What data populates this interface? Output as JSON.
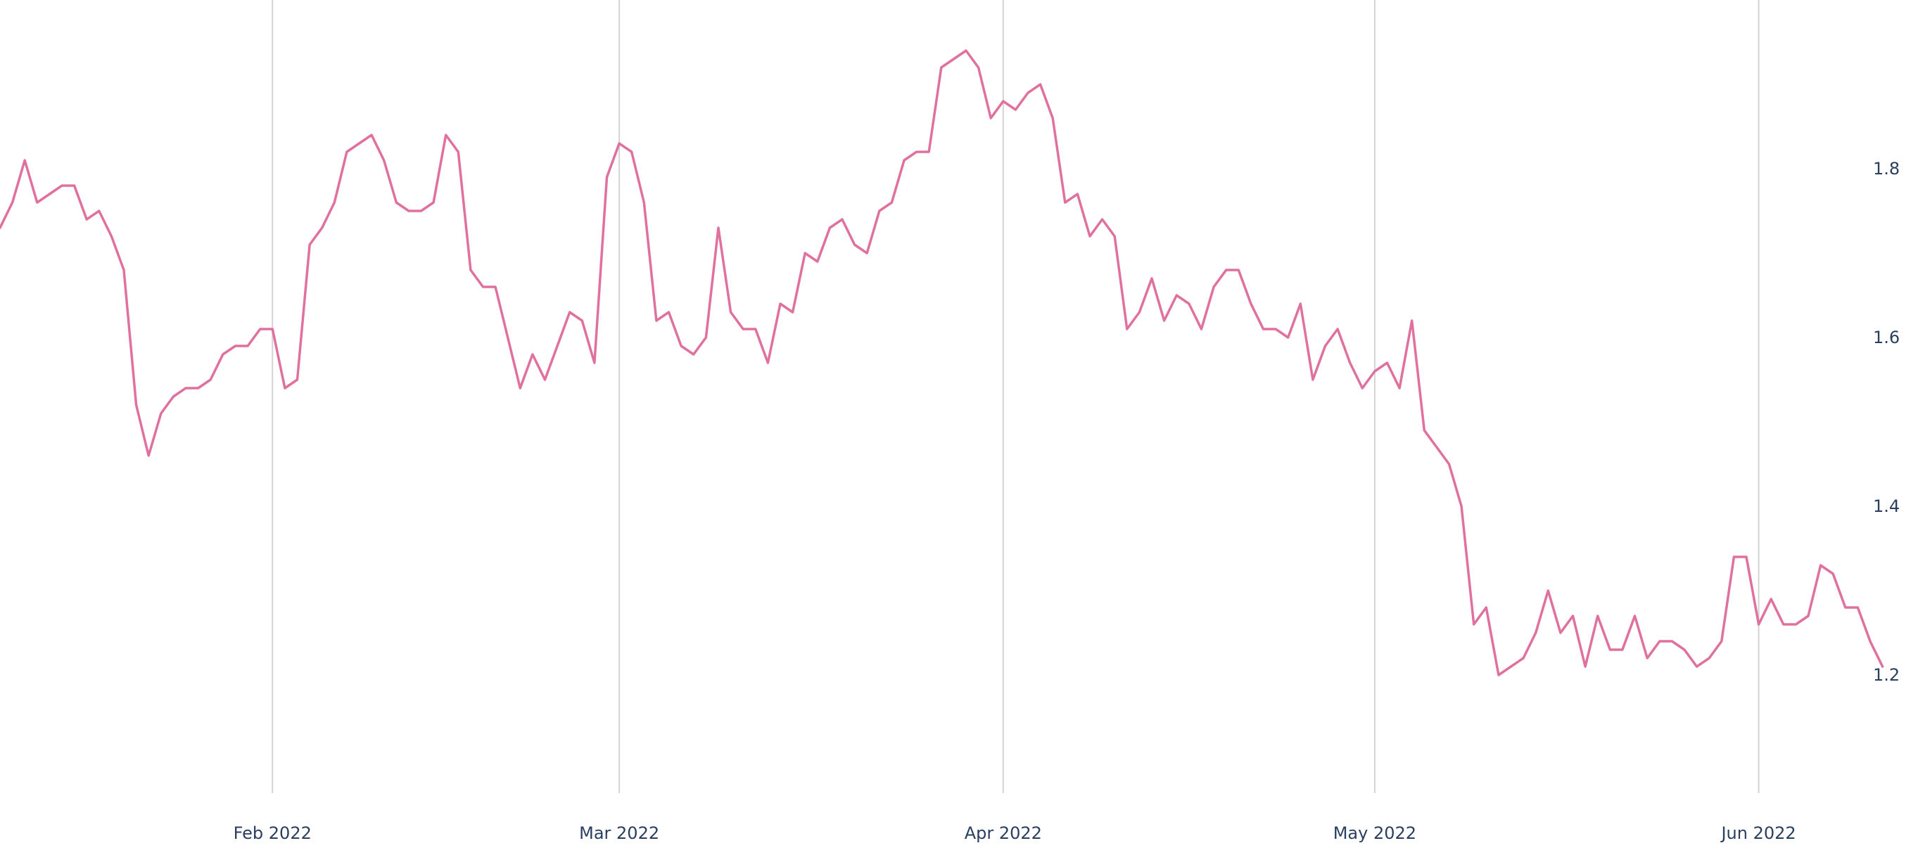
{
  "chart_data": {
    "type": "line",
    "title": "",
    "xlabel": "",
    "ylabel": "",
    "x_start": "2022-01-10",
    "x_end": "2022-06-10",
    "ylim": [
      1.06,
      2.0
    ],
    "grid": {
      "x": true,
      "y": false
    },
    "y_axis_side": "right",
    "x_tick_labels": [
      {
        "date": "2022-02-01",
        "label": "Feb 2022"
      },
      {
        "date": "2022-03-01",
        "label": "Mar 2022"
      },
      {
        "date": "2022-04-01",
        "label": "Apr 2022"
      },
      {
        "date": "2022-05-01",
        "label": "May 2022"
      },
      {
        "date": "2022-06-01",
        "label": "Jun 2022"
      }
    ],
    "y_ticks": [
      1.2,
      1.4,
      1.6,
      1.8
    ],
    "y_tick_labels": [
      "1.2",
      "1.4",
      "1.6",
      "1.8"
    ],
    "series": [
      {
        "color": "#e0719e",
        "points": [
          [
            "2022-01-10",
            1.73
          ],
          [
            "2022-01-11",
            1.76
          ],
          [
            "2022-01-12",
            1.81
          ],
          [
            "2022-01-13",
            1.76
          ],
          [
            "2022-01-14",
            1.77
          ],
          [
            "2022-01-15",
            1.78
          ],
          [
            "2022-01-16",
            1.78
          ],
          [
            "2022-01-17",
            1.74
          ],
          [
            "2022-01-18",
            1.75
          ],
          [
            "2022-01-19",
            1.72
          ],
          [
            "2022-01-20",
            1.68
          ],
          [
            "2022-01-21",
            1.52
          ],
          [
            "2022-01-22",
            1.46
          ],
          [
            "2022-01-23",
            1.51
          ],
          [
            "2022-01-24",
            1.53
          ],
          [
            "2022-01-25",
            1.54
          ],
          [
            "2022-01-26",
            1.54
          ],
          [
            "2022-01-27",
            1.55
          ],
          [
            "2022-01-28",
            1.58
          ],
          [
            "2022-01-29",
            1.59
          ],
          [
            "2022-01-30",
            1.59
          ],
          [
            "2022-01-31",
            1.61
          ],
          [
            "2022-02-01",
            1.61
          ],
          [
            "2022-02-02",
            1.54
          ],
          [
            "2022-02-03",
            1.55
          ],
          [
            "2022-02-04",
            1.71
          ],
          [
            "2022-02-05",
            1.73
          ],
          [
            "2022-02-06",
            1.76
          ],
          [
            "2022-02-07",
            1.82
          ],
          [
            "2022-02-08",
            1.83
          ],
          [
            "2022-02-09",
            1.84
          ],
          [
            "2022-02-10",
            1.81
          ],
          [
            "2022-02-11",
            1.76
          ],
          [
            "2022-02-12",
            1.75
          ],
          [
            "2022-02-13",
            1.75
          ],
          [
            "2022-02-14",
            1.76
          ],
          [
            "2022-02-15",
            1.84
          ],
          [
            "2022-02-16",
            1.82
          ],
          [
            "2022-02-17",
            1.68
          ],
          [
            "2022-02-18",
            1.66
          ],
          [
            "2022-02-19",
            1.66
          ],
          [
            "2022-02-20",
            1.6
          ],
          [
            "2022-02-21",
            1.54
          ],
          [
            "2022-02-22",
            1.58
          ],
          [
            "2022-02-23",
            1.55
          ],
          [
            "2022-02-24",
            1.59
          ],
          [
            "2022-02-25",
            1.63
          ],
          [
            "2022-02-26",
            1.62
          ],
          [
            "2022-02-27",
            1.57
          ],
          [
            "2022-02-28",
            1.79
          ],
          [
            "2022-03-01",
            1.83
          ],
          [
            "2022-03-02",
            1.82
          ],
          [
            "2022-03-03",
            1.76
          ],
          [
            "2022-03-04",
            1.62
          ],
          [
            "2022-03-05",
            1.63
          ],
          [
            "2022-03-06",
            1.59
          ],
          [
            "2022-03-07",
            1.58
          ],
          [
            "2022-03-08",
            1.6
          ],
          [
            "2022-03-09",
            1.73
          ],
          [
            "2022-03-10",
            1.63
          ],
          [
            "2022-03-11",
            1.61
          ],
          [
            "2022-03-12",
            1.61
          ],
          [
            "2022-03-13",
            1.57
          ],
          [
            "2022-03-14",
            1.64
          ],
          [
            "2022-03-15",
            1.63
          ],
          [
            "2022-03-16",
            1.7
          ],
          [
            "2022-03-17",
            1.69
          ],
          [
            "2022-03-18",
            1.73
          ],
          [
            "2022-03-19",
            1.74
          ],
          [
            "2022-03-20",
            1.71
          ],
          [
            "2022-03-21",
            1.7
          ],
          [
            "2022-03-22",
            1.75
          ],
          [
            "2022-03-23",
            1.76
          ],
          [
            "2022-03-24",
            1.81
          ],
          [
            "2022-03-25",
            1.82
          ],
          [
            "2022-03-26",
            1.82
          ],
          [
            "2022-03-27",
            1.92
          ],
          [
            "2022-03-28",
            1.93
          ],
          [
            "2022-03-29",
            1.94
          ],
          [
            "2022-03-30",
            1.92
          ],
          [
            "2022-03-31",
            1.86
          ],
          [
            "2022-04-01",
            1.88
          ],
          [
            "2022-04-02",
            1.87
          ],
          [
            "2022-04-03",
            1.89
          ],
          [
            "2022-04-04",
            1.9
          ],
          [
            "2022-04-05",
            1.86
          ],
          [
            "2022-04-06",
            1.76
          ],
          [
            "2022-04-07",
            1.77
          ],
          [
            "2022-04-08",
            1.72
          ],
          [
            "2022-04-09",
            1.74
          ],
          [
            "2022-04-10",
            1.72
          ],
          [
            "2022-04-11",
            1.61
          ],
          [
            "2022-04-12",
            1.63
          ],
          [
            "2022-04-13",
            1.67
          ],
          [
            "2022-04-14",
            1.62
          ],
          [
            "2022-04-15",
            1.65
          ],
          [
            "2022-04-16",
            1.64
          ],
          [
            "2022-04-17",
            1.61
          ],
          [
            "2022-04-18",
            1.66
          ],
          [
            "2022-04-19",
            1.68
          ],
          [
            "2022-04-20",
            1.68
          ],
          [
            "2022-04-21",
            1.64
          ],
          [
            "2022-04-22",
            1.61
          ],
          [
            "2022-04-23",
            1.61
          ],
          [
            "2022-04-24",
            1.6
          ],
          [
            "2022-04-25",
            1.64
          ],
          [
            "2022-04-26",
            1.55
          ],
          [
            "2022-04-27",
            1.59
          ],
          [
            "2022-04-28",
            1.61
          ],
          [
            "2022-04-29",
            1.57
          ],
          [
            "2022-04-30",
            1.54
          ],
          [
            "2022-05-01",
            1.56
          ],
          [
            "2022-05-02",
            1.57
          ],
          [
            "2022-05-03",
            1.54
          ],
          [
            "2022-05-04",
            1.62
          ],
          [
            "2022-05-05",
            1.49
          ],
          [
            "2022-05-06",
            1.47
          ],
          [
            "2022-05-07",
            1.45
          ],
          [
            "2022-05-08",
            1.4
          ],
          [
            "2022-05-09",
            1.26
          ],
          [
            "2022-05-10",
            1.28
          ],
          [
            "2022-05-11",
            1.2
          ],
          [
            "2022-05-12",
            1.21
          ],
          [
            "2022-05-13",
            1.22
          ],
          [
            "2022-05-14",
            1.25
          ],
          [
            "2022-05-15",
            1.3
          ],
          [
            "2022-05-16",
            1.25
          ],
          [
            "2022-05-17",
            1.27
          ],
          [
            "2022-05-18",
            1.21
          ],
          [
            "2022-05-19",
            1.27
          ],
          [
            "2022-05-20",
            1.23
          ],
          [
            "2022-05-21",
            1.23
          ],
          [
            "2022-05-22",
            1.27
          ],
          [
            "2022-05-23",
            1.22
          ],
          [
            "2022-05-24",
            1.24
          ],
          [
            "2022-05-25",
            1.24
          ],
          [
            "2022-05-26",
            1.23
          ],
          [
            "2022-05-27",
            1.21
          ],
          [
            "2022-05-28",
            1.22
          ],
          [
            "2022-05-29",
            1.24
          ],
          [
            "2022-05-30",
            1.34
          ],
          [
            "2022-05-31",
            1.34
          ],
          [
            "2022-06-01",
            1.26
          ],
          [
            "2022-06-02",
            1.29
          ],
          [
            "2022-06-03",
            1.26
          ],
          [
            "2022-06-04",
            1.26
          ],
          [
            "2022-06-05",
            1.27
          ],
          [
            "2022-06-06",
            1.33
          ],
          [
            "2022-06-07",
            1.32
          ],
          [
            "2022-06-08",
            1.28
          ],
          [
            "2022-06-09",
            1.28
          ],
          [
            "2022-06-10",
            1.24
          ],
          [
            "2022-06-11",
            1.21
          ]
        ]
      }
    ]
  }
}
